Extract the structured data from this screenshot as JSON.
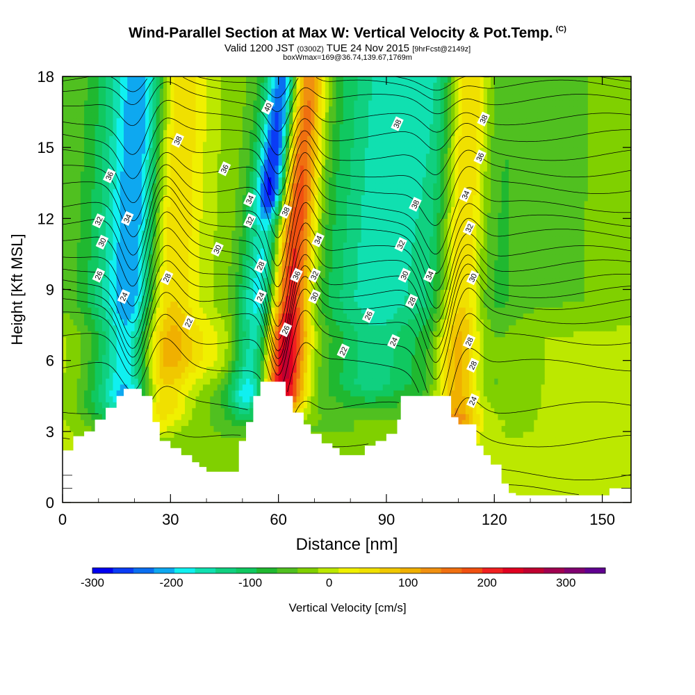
{
  "title": {
    "main": "Wind-Parallel Section at Max W: Vertical Velocity & Pot.Temp.",
    "main_suffix": "(C)",
    "valid_prefix": "Valid 1200 JST",
    "valid_zulu": "(0300Z)",
    "valid_date": "TUE 24 Nov 2015",
    "valid_fcst": "[9hrFcst@2149z]",
    "box_info": "boxWmax=169@36.74,139.67,1769m"
  },
  "chart_data": {
    "type": "heatmap",
    "xlabel": "Distance [nm]",
    "ylabel": "Height [Kft MSL]",
    "xlim": [
      0,
      158
    ],
    "ylim": [
      0,
      18
    ],
    "x_ticks": [
      0,
      30,
      60,
      90,
      120,
      150
    ],
    "y_ticks": [
      0,
      3,
      6,
      9,
      12,
      15,
      18
    ],
    "colorbar": {
      "label": "Vertical Velocity [cm/s]",
      "range": [
        -300,
        350
      ],
      "step": 25,
      "ticks": [
        -300,
        -200,
        -100,
        0,
        100,
        200,
        300
      ],
      "colors": [
        "#0000f0",
        "#0a3cf5",
        "#0a6ef0",
        "#0ea8f0",
        "#10f0f0",
        "#10e0b0",
        "#10d080",
        "#10c860",
        "#20b830",
        "#50c020",
        "#80d000",
        "#bce800",
        "#f0f000",
        "#f0e000",
        "#f0c800",
        "#f0b000",
        "#f09010",
        "#f07010",
        "#f05010",
        "#f02020",
        "#e00020",
        "#c00030",
        "#a00050",
        "#800070",
        "#600090"
      ]
    },
    "vertical_velocity_features": [
      {
        "x": 11,
        "w": 230,
        "slope": 0.2,
        "zmin": 8.5,
        "zmax": 18,
        "value": -40
      },
      {
        "x": 18,
        "w": 9,
        "slope": 0.35,
        "zmin": 4,
        "zmax": 18,
        "value": -90
      },
      {
        "x": 24,
        "w": 7,
        "slope": 0.32,
        "zmin": 4.5,
        "zmax": 18,
        "value": -190
      },
      {
        "x": 29,
        "w": 9,
        "slope": 0.3,
        "zmin": 4,
        "zmax": 18,
        "value": 140
      },
      {
        "x": 38,
        "w": 36,
        "slope": 0.2,
        "zmin": 0,
        "zmax": 18,
        "value": -40
      },
      {
        "x": 40,
        "w": 20,
        "slope": 0.3,
        "zmin": 6,
        "zmax": 18,
        "value": 60
      },
      {
        "x": 63,
        "w": 6,
        "slope": 0.8,
        "zmin": 4.5,
        "zmax": 18,
        "value": -170
      },
      {
        "x": 62,
        "w": 4,
        "slope": 0.8,
        "zmin": 13,
        "zmax": 18,
        "value": -130
      },
      {
        "x": 67,
        "w": 6,
        "slope": 0.45,
        "zmin": 4.5,
        "zmax": 18,
        "value": 300
      },
      {
        "x": 85,
        "w": 36,
        "slope": 0.25,
        "zmin": 3,
        "zmax": 18,
        "value": -40
      },
      {
        "x": 93,
        "w": 12,
        "slope": 0.5,
        "zmin": 5,
        "zmax": 18,
        "value": -90
      },
      {
        "x": 108,
        "w": 7,
        "slope": 0.2,
        "zmin": 4,
        "zmax": 18,
        "value": -130
      },
      {
        "x": 112,
        "w": 7,
        "slope": 0.28,
        "zmin": 3.5,
        "zmax": 18,
        "value": 230
      },
      {
        "x": 118,
        "w": 8,
        "slope": 0.1,
        "zmin": 5,
        "zmax": 18,
        "value": -40
      },
      {
        "x": 140,
        "w": 40,
        "slope": 0,
        "zmin": 0,
        "zmax": 18,
        "value": -20
      }
    ],
    "terrain": {
      "x": [
        0,
        3,
        6,
        9,
        12,
        15,
        17,
        22,
        25,
        27,
        30,
        33,
        36,
        38,
        40,
        42,
        44,
        49,
        51,
        53,
        55,
        60,
        62,
        64,
        67,
        69,
        72,
        75,
        77,
        81,
        84,
        87,
        90,
        93,
        94,
        98,
        103,
        106,
        108,
        110,
        115,
        117,
        119,
        122,
        124,
        126,
        130,
        134,
        140,
        143,
        152,
        158
      ],
      "z": [
        2.2,
        2.8,
        3.0,
        3.5,
        4.0,
        4.5,
        4.8,
        4.5,
        3.4,
        2.6,
        2.3,
        2.0,
        1.7,
        1.5,
        1.3,
        1.3,
        1.3,
        2.6,
        3.4,
        4.5,
        5.1,
        5.1,
        4.5,
        3.8,
        3.3,
        2.9,
        2.5,
        2.3,
        2.0,
        2.0,
        2.4,
        2.6,
        2.9,
        3.5,
        4.5,
        4.5,
        4.5,
        4.5,
        3.6,
        3.3,
        2.4,
        2.0,
        1.6,
        0.8,
        0.4,
        0.3,
        0.3,
        0.3,
        0.3,
        0.3,
        0.6,
        0.6
      ]
    },
    "theta_contours": {
      "name": "Pot.Temp.",
      "levels": [
        20,
        21,
        22,
        23,
        24,
        25,
        26,
        27,
        28,
        29,
        30,
        31,
        32,
        33,
        34,
        35,
        36,
        37,
        38,
        39,
        40,
        41,
        42
      ],
      "base_heights": [
        0.5,
        1.2,
        2.6,
        4.0,
        5.8,
        6.9,
        7.8,
        8.4,
        8.9,
        9.4,
        10.0,
        10.6,
        11.3,
        11.9,
        12.5,
        13.3,
        14.0,
        14.7,
        15.5,
        16.2,
        17.0,
        17.6,
        18.0
      ]
    },
    "theta_labels": [
      {
        "text": "40",
        "x": 57,
        "z": 16.7
      },
      {
        "text": "38",
        "x": 32,
        "z": 15.3
      },
      {
        "text": "38",
        "x": 93,
        "z": 16.0
      },
      {
        "text": "38",
        "x": 117,
        "z": 16.2
      },
      {
        "text": "36",
        "x": 13,
        "z": 13.8
      },
      {
        "text": "36",
        "x": 45,
        "z": 14.1
      },
      {
        "text": "36",
        "x": 116,
        "z": 14.6
      },
      {
        "text": "34",
        "x": 52,
        "z": 12.8
      },
      {
        "text": "34",
        "x": 18,
        "z": 12.0
      },
      {
        "text": "34",
        "x": 112,
        "z": 13.0
      },
      {
        "text": "38",
        "x": 62,
        "z": 12.3
      },
      {
        "text": "38",
        "x": 98,
        "z": 12.6
      },
      {
        "text": "32",
        "x": 10,
        "z": 11.9
      },
      {
        "text": "32",
        "x": 52,
        "z": 11.9
      },
      {
        "text": "32",
        "x": 113,
        "z": 11.6
      },
      {
        "text": "34",
        "x": 71,
        "z": 11.1
      },
      {
        "text": "32",
        "x": 94,
        "z": 10.9
      },
      {
        "text": "30",
        "x": 11,
        "z": 11.0
      },
      {
        "text": "30",
        "x": 43,
        "z": 10.7
      },
      {
        "text": "28",
        "x": 55,
        "z": 10.0
      },
      {
        "text": "28",
        "x": 29,
        "z": 9.5
      },
      {
        "text": "26",
        "x": 10,
        "z": 9.6
      },
      {
        "text": "36",
        "x": 65,
        "z": 9.6
      },
      {
        "text": "32",
        "x": 70,
        "z": 9.6
      },
      {
        "text": "30",
        "x": 95,
        "z": 9.6
      },
      {
        "text": "34",
        "x": 102,
        "z": 9.6
      },
      {
        "text": "30",
        "x": 114,
        "z": 9.5
      },
      {
        "text": "24",
        "x": 17,
        "z": 8.7
      },
      {
        "text": "24",
        "x": 55,
        "z": 8.7
      },
      {
        "text": "30",
        "x": 70,
        "z": 8.7
      },
      {
        "text": "28",
        "x": 97,
        "z": 8.5
      },
      {
        "text": "26",
        "x": 85,
        "z": 7.9
      },
      {
        "text": "22",
        "x": 35,
        "z": 7.6
      },
      {
        "text": "26",
        "x": 62,
        "z": 7.3
      },
      {
        "text": "24",
        "x": 92,
        "z": 6.8
      },
      {
        "text": "28",
        "x": 113,
        "z": 6.8
      },
      {
        "text": "22",
        "x": 78,
        "z": 6.4
      },
      {
        "text": "28",
        "x": 114,
        "z": 5.8
      },
      {
        "text": "24",
        "x": 114,
        "z": 4.3
      }
    ]
  }
}
